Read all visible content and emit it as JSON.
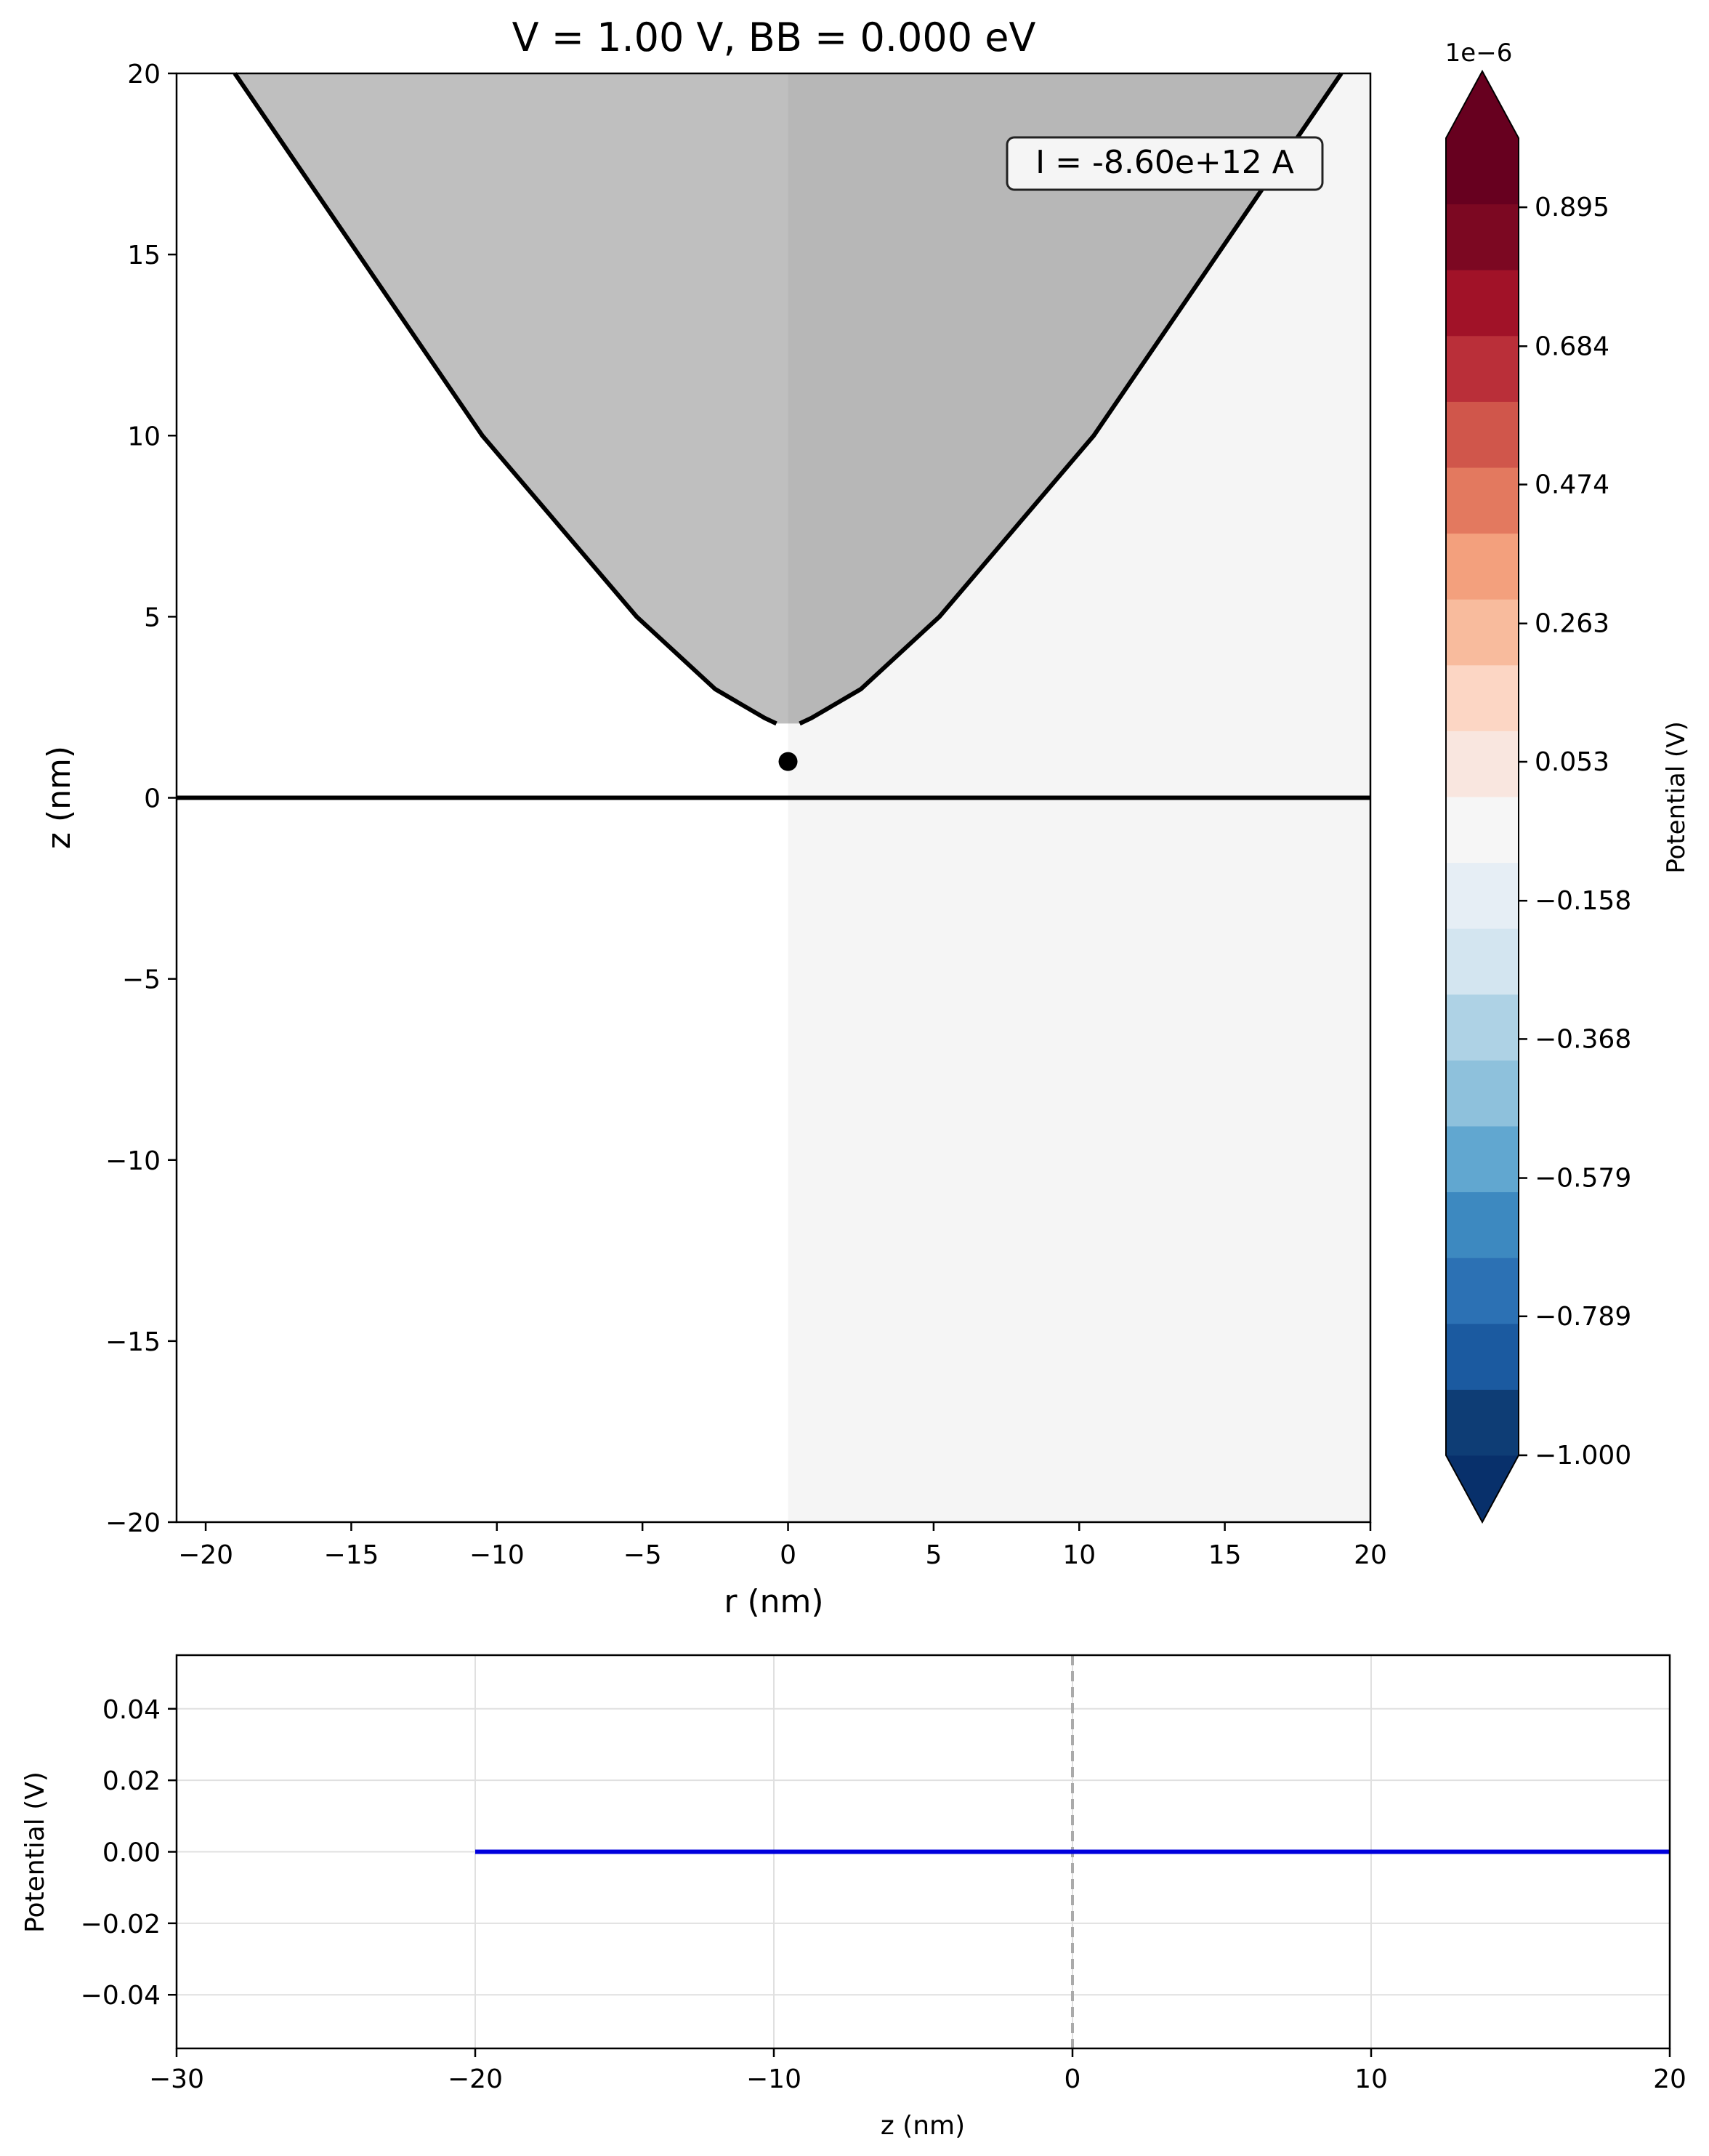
{
  "colors": {
    "tip_fill_left": "#bfbfbf",
    "tip_fill_right": "#b7b7b7",
    "sample_right": "#f5f5f5",
    "outline": "#000000",
    "line_series": "#0000dd",
    "zero_line": "#aaaaaa",
    "grid": "#e0e0e0"
  },
  "chart_data": [
    {
      "type": "heatmap",
      "title": "V = 1.00 V, BB = 0.000 eV",
      "xlabel": "r (nm)",
      "ylabel": "z (nm)",
      "xlim": [
        -21,
        20
      ],
      "ylim": [
        -20,
        20
      ],
      "xticks": [
        -20,
        -15,
        -10,
        -5,
        0,
        5,
        10,
        15,
        20
      ],
      "yticks": [
        -20,
        -15,
        -10,
        -5,
        0,
        5,
        10,
        15,
        20
      ],
      "annotation": "I = -8.60e+12 A",
      "surface_z": 0,
      "tip_apex_z": 2,
      "marker_point": [
        0,
        1
      ],
      "tip_outline_points": [
        [
          -19,
          20
        ],
        [
          -10.5,
          10
        ],
        [
          -5.2,
          5
        ],
        [
          -2.5,
          3
        ],
        [
          -0.8,
          2.2
        ],
        [
          -0.4,
          2.05
        ]
      ],
      "potential_field_uniform": 0,
      "colorbar": {
        "label": "Potential (V)",
        "scale_label": "1e−6",
        "tick_labels": [
          "0.895",
          "0.684",
          "0.474",
          "0.263",
          "0.053",
          "−0.158",
          "−0.368",
          "−0.579",
          "−0.789",
          "−1.000"
        ],
        "tick_values": [
          0.895,
          0.684,
          0.474,
          0.263,
          0.053,
          -0.158,
          -0.368,
          -0.579,
          -0.789,
          -1.0
        ],
        "vmin": -1.0,
        "vmax": 1.0,
        "extend": "both",
        "levels": 20,
        "colors": [
          "#08306b",
          "#0e3d75",
          "#1b5aa0",
          "#2c71b4",
          "#3d89c0",
          "#61a7d0",
          "#8ec1dc",
          "#aed2e5",
          "#d3e5f0",
          "#e6eef5",
          "#f6f6f6",
          "#f9e6df",
          "#fcd6c4",
          "#f8bb9d",
          "#f3a07d",
          "#e3795f",
          "#d0564b",
          "#ba2f39",
          "#a11228",
          "#7c0822",
          "#67001f"
        ]
      }
    },
    {
      "type": "line",
      "xlabel": "z (nm)",
      "ylabel": "Potential (V)",
      "xlim": [
        -30,
        20
      ],
      "ylim": [
        -0.055,
        0.055
      ],
      "xticks": [
        -30,
        -20,
        -10,
        0,
        10,
        20
      ],
      "xtick_labels": [
        "−30",
        "−20",
        "−10",
        "0",
        "10",
        "20"
      ],
      "yticks": [
        0.04,
        0.02,
        0.0,
        -0.02,
        -0.04
      ],
      "ytick_labels": [
        "0.04",
        "0.02",
        "0.00",
        "−0.02",
        "−0.04"
      ],
      "grid": true,
      "vertical_dashed_line_x": 0,
      "x": [
        -20,
        -10,
        0,
        10,
        20
      ],
      "y": [
        0,
        0,
        0,
        0,
        0
      ]
    }
  ]
}
